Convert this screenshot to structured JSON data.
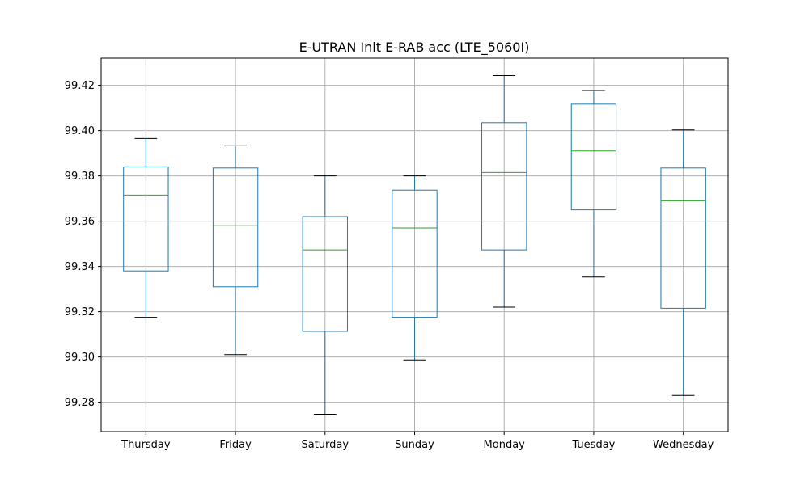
{
  "chart_data": {
    "type": "box",
    "title": "E-UTRAN Init E-RAB acc (LTE_5060I)",
    "xlabel": "",
    "ylabel": "",
    "ylim": [
      99.267,
      99.432
    ],
    "yticks": [
      99.28,
      99.3,
      99.32,
      99.34,
      99.36,
      99.38,
      99.4,
      99.42
    ],
    "grid": true,
    "categories": [
      "Thursday",
      "Friday",
      "Saturday",
      "Sunday",
      "Monday",
      "Tuesday",
      "Wednesday"
    ],
    "boxes": [
      {
        "category": "Thursday",
        "whisker_low": 99.3175,
        "q1": 99.338,
        "median": 99.3715,
        "q3": 99.384,
        "whisker_high": 99.3965
      },
      {
        "category": "Friday",
        "whisker_low": 99.301,
        "q1": 99.331,
        "median": 99.358,
        "q3": 99.3835,
        "whisker_high": 99.3933
      },
      {
        "category": "Saturday",
        "whisker_low": 99.2747,
        "q1": 99.3113,
        "median": 99.3473,
        "q3": 99.362,
        "whisker_high": 99.38
      },
      {
        "category": "Sunday",
        "whisker_low": 99.2987,
        "q1": 99.3175,
        "median": 99.357,
        "q3": 99.3737,
        "whisker_high": 99.38
      },
      {
        "category": "Monday",
        "whisker_low": 99.322,
        "q1": 99.3473,
        "median": 99.3815,
        "q3": 99.4035,
        "whisker_high": 99.4243
      },
      {
        "category": "Tuesday",
        "whisker_low": 99.3353,
        "q1": 99.365,
        "median": 99.391,
        "q3": 99.4117,
        "whisker_high": 99.4177
      },
      {
        "category": "Wednesday",
        "whisker_low": 99.283,
        "q1": 99.3215,
        "median": 99.369,
        "q3": 99.3835,
        "whisker_high": 99.4003
      }
    ],
    "colors": {
      "box": "#1f77b4",
      "median": "#2ca02c",
      "cap": "#000000",
      "grid": "#b0b0b0",
      "axis": "#000000"
    }
  }
}
